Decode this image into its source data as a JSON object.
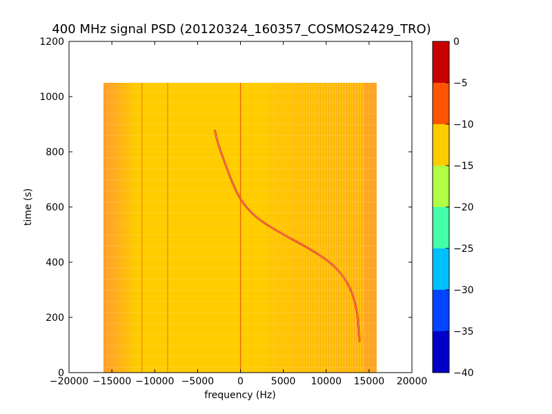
{
  "chart_data": {
    "type": "heatmap",
    "title": "400 MHz signal PSD (20120324_160357_COSMOS2429_TRO)",
    "xlabel": "frequency (Hz)",
    "ylabel": "time (s)",
    "xlim": [
      -20000,
      20000
    ],
    "ylim": [
      0,
      1200
    ],
    "xticks": [
      -20000,
      -15000,
      -10000,
      -5000,
      0,
      5000,
      10000,
      15000,
      20000
    ],
    "xtick_labels": [
      "−20000",
      "−15000",
      "−10000",
      "−5000",
      "0",
      "5000",
      "10000",
      "15000",
      "20000"
    ],
    "yticks": [
      0,
      200,
      400,
      600,
      800,
      1000,
      1200
    ],
    "ytick_labels": [
      "0",
      "200",
      "400",
      "600",
      "800",
      "1000",
      "1200"
    ],
    "grid": false,
    "data_extent": {
      "freq_range": [
        -16000,
        16000
      ],
      "time_range": [
        0,
        1050
      ]
    },
    "background_level": {
      "dominant_value": -12,
      "edge_value": -8
    },
    "vertical_artifacts_hz": [
      -16000,
      -11500,
      -8500,
      0
    ],
    "signal_trace": {
      "points": [
        {
          "time": 880,
          "freq": -3000
        },
        {
          "time": 850,
          "freq": -2800
        },
        {
          "time": 800,
          "freq": -2300
        },
        {
          "time": 750,
          "freq": -1700
        },
        {
          "time": 700,
          "freq": -1100
        },
        {
          "time": 650,
          "freq": -400
        },
        {
          "time": 600,
          "freq": 600
        },
        {
          "time": 550,
          "freq": 2300
        },
        {
          "time": 500,
          "freq": 5000
        },
        {
          "time": 450,
          "freq": 8000
        },
        {
          "time": 400,
          "freq": 10500
        },
        {
          "time": 350,
          "freq": 12000
        },
        {
          "time": 300,
          "freq": 12900
        },
        {
          "time": 250,
          "freq": 13400
        },
        {
          "time": 200,
          "freq": 13700
        },
        {
          "time": 150,
          "freq": 13800
        },
        {
          "time": 110,
          "freq": 13900
        }
      ]
    },
    "colorbar": {
      "levels": [
        0,
        -5,
        -10,
        -15,
        -20,
        -25,
        -30,
        -35,
        -40
      ],
      "level_labels": [
        "0",
        "−5",
        "−10",
        "−15",
        "−20",
        "−25",
        "−30",
        "−35",
        "−40"
      ],
      "bands": [
        {
          "from": -40,
          "to": -35,
          "color": "#0000c8"
        },
        {
          "from": -35,
          "to": -30,
          "color": "#0044ff"
        },
        {
          "from": -30,
          "to": -25,
          "color": "#00c0ff"
        },
        {
          "from": -25,
          "to": -20,
          "color": "#44ffaa"
        },
        {
          "from": -20,
          "to": -15,
          "color": "#b0ff44"
        },
        {
          "from": -15,
          "to": -10,
          "color": "#ffcc00"
        },
        {
          "from": -10,
          "to": -5,
          "color": "#ff5500"
        },
        {
          "from": -5,
          "to": 0,
          "color": "#c80000"
        }
      ]
    }
  }
}
